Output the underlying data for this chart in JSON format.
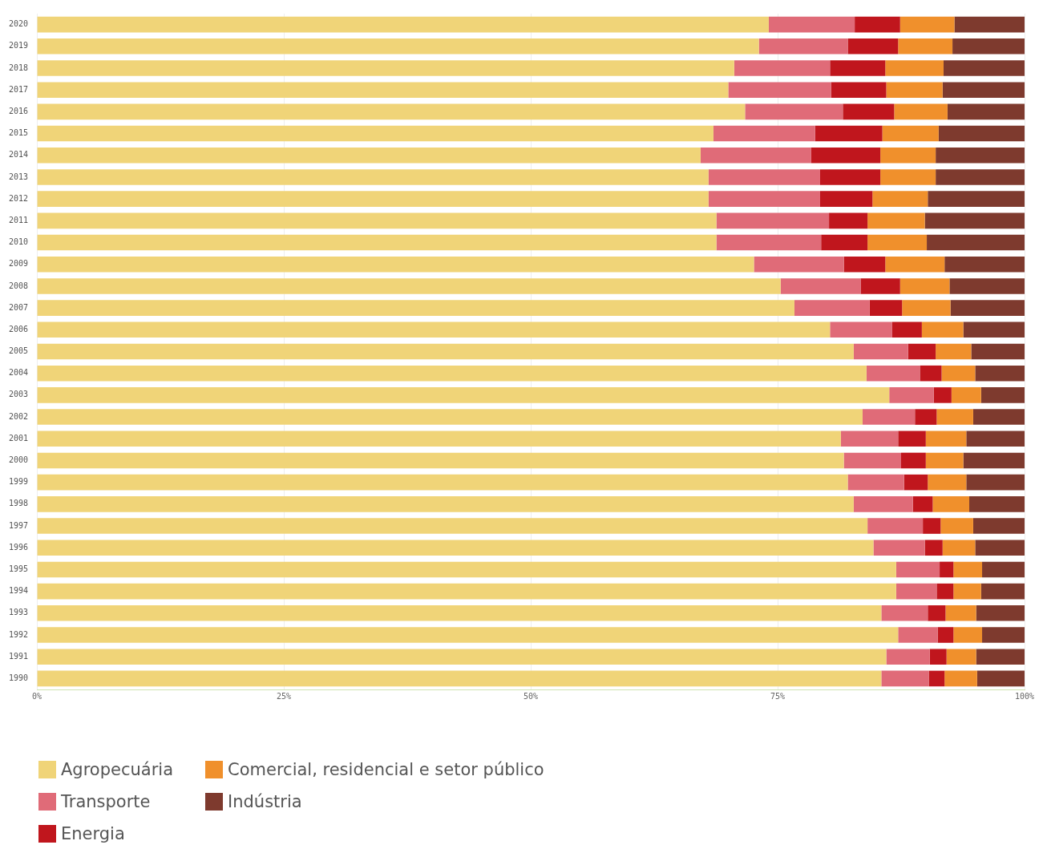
{
  "chart_data": {
    "type": "bar",
    "orientation": "horizontal",
    "stacked": true,
    "grid": "x",
    "legend": "bottom left",
    "categories": [
      "2020",
      "2019",
      "2018",
      "2017",
      "2016",
      "2015",
      "2014",
      "2013",
      "2012",
      "2011",
      "2010",
      "2009",
      "2008",
      "2007",
      "2006",
      "2005",
      "2004",
      "2003",
      "2002",
      "2001",
      "2000",
      "1999",
      "1998",
      "1997",
      "1996",
      "1995",
      "1994",
      "1993",
      "1992",
      "1991",
      "1990"
    ],
    "xlim": [
      0,
      100
    ],
    "xticks": [
      {
        "value": 0,
        "label": "0%"
      },
      {
        "value": 25,
        "label": "25%"
      },
      {
        "value": 50,
        "label": "50%"
      },
      {
        "value": 75,
        "label": "75%"
      },
      {
        "value": 100,
        "label": "100%"
      }
    ],
    "series": [
      {
        "name": "Agropecuária",
        "color": "#f0d478",
        "values": [
          74.1,
          73.1,
          70.6,
          70.0,
          71.7,
          68.5,
          67.2,
          68.0,
          68.0,
          68.8,
          68.8,
          72.6,
          75.3,
          76.7,
          80.3,
          82.7,
          84.0,
          86.3,
          83.6,
          81.4,
          81.7,
          82.1,
          82.7,
          84.1,
          84.7,
          87.0,
          87.0,
          85.5,
          87.2,
          86.0,
          85.5
        ]
      },
      {
        "name": "Transporte",
        "color": "#e06b78",
        "values": [
          8.7,
          9.0,
          9.7,
          10.4,
          9.9,
          10.3,
          11.2,
          11.3,
          11.3,
          11.4,
          10.6,
          9.1,
          8.1,
          7.6,
          6.3,
          5.5,
          5.4,
          4.5,
          5.3,
          5.8,
          5.8,
          5.7,
          6.0,
          5.6,
          5.2,
          4.4,
          4.1,
          4.7,
          4.0,
          4.4,
          4.8
        ]
      },
      {
        "name": "Energia",
        "color": "#c0161d",
        "values": [
          4.6,
          5.1,
          5.6,
          5.6,
          5.2,
          6.8,
          7.0,
          6.1,
          5.3,
          3.9,
          4.7,
          4.2,
          4.0,
          3.3,
          3.0,
          2.8,
          2.2,
          1.8,
          2.2,
          2.8,
          2.5,
          2.4,
          2.0,
          1.8,
          1.8,
          1.4,
          1.7,
          1.8,
          1.6,
          1.7,
          1.6
        ]
      },
      {
        "name": "Comercial, residencial e setor público",
        "color": "#f0902c",
        "values": [
          5.5,
          5.5,
          5.9,
          5.7,
          5.4,
          5.7,
          5.6,
          5.6,
          5.6,
          5.8,
          6.0,
          6.0,
          5.0,
          4.9,
          4.2,
          3.6,
          3.4,
          3.0,
          3.7,
          4.1,
          3.8,
          3.9,
          3.7,
          3.3,
          3.3,
          2.9,
          2.8,
          3.1,
          2.9,
          3.0,
          3.3
        ]
      },
      {
        "name": "Indústria",
        "color": "#7e3a2e",
        "values": [
          7.1,
          7.3,
          8.2,
          8.3,
          7.8,
          8.7,
          9.0,
          9.0,
          9.8,
          10.1,
          9.9,
          8.1,
          7.6,
          7.5,
          6.2,
          5.4,
          5.0,
          4.4,
          5.2,
          5.9,
          6.2,
          5.9,
          5.6,
          5.2,
          5.0,
          4.3,
          4.4,
          4.9,
          4.3,
          4.9,
          4.8
        ]
      }
    ]
  }
}
